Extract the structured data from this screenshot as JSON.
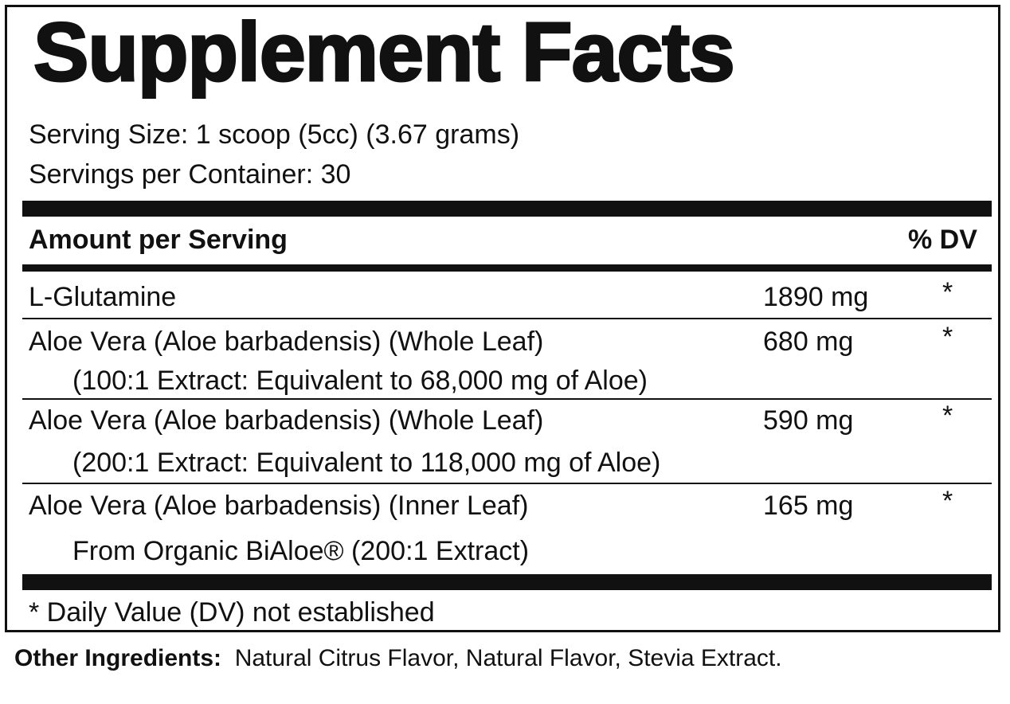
{
  "title": "Supplement Facts",
  "serving_size": "Serving Size: 1 scoop (5cc) (3.67 grams)",
  "servings_per_container": "Servings per Container: 30",
  "header": {
    "amount_label": "Amount per Serving",
    "dv_label": "% DV"
  },
  "rows": [
    {
      "name": "L-Glutamine",
      "amount": "1890 mg",
      "dv": "*"
    },
    {
      "name": "Aloe Vera (Aloe barbadensis) (Whole Leaf)",
      "sub": "(100:1 Extract: Equivalent to 68,000 mg of Aloe)",
      "amount": "680 mg",
      "dv": "*"
    },
    {
      "name": "Aloe Vera (Aloe barbadensis) (Whole Leaf)",
      "sub": "(200:1 Extract: Equivalent to 118,000 mg of Aloe)",
      "amount": "590 mg",
      "dv": "*"
    },
    {
      "name": "Aloe Vera (Aloe barbadensis) (Inner Leaf)",
      "sub": "From Organic BiAloe® (200:1 Extract)",
      "amount": "165 mg",
      "dv": "*"
    }
  ],
  "footnote": "* Daily Value (DV) not established",
  "other_ingredients": {
    "label": "Other Ingredients:",
    "text": "Natural Citrus Flavor, Natural Flavor, Stevia Extract."
  }
}
